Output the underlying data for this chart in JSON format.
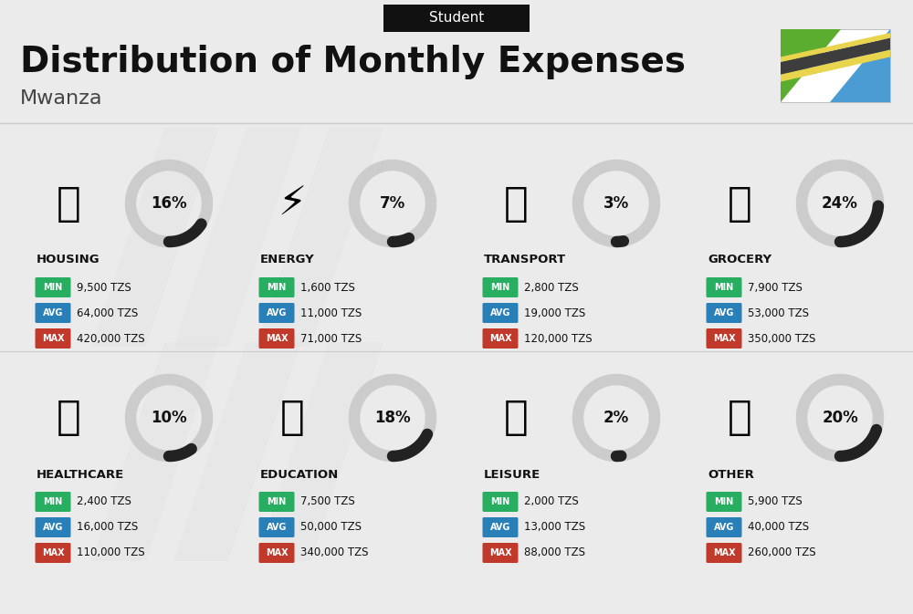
{
  "title": "Distribution of Monthly Expenses",
  "subtitle": "Student",
  "city": "Mwanza",
  "bg_color": "#ebebeb",
  "categories": [
    {
      "name": "HOUSING",
      "pct": 16,
      "min": "9,500 TZS",
      "avg": "64,000 TZS",
      "max": "420,000 TZS",
      "row": 0,
      "col": 0
    },
    {
      "name": "ENERGY",
      "pct": 7,
      "min": "1,600 TZS",
      "avg": "11,000 TZS",
      "max": "71,000 TZS",
      "row": 0,
      "col": 1
    },
    {
      "name": "TRANSPORT",
      "pct": 3,
      "min": "2,800 TZS",
      "avg": "19,000 TZS",
      "max": "120,000 TZS",
      "row": 0,
      "col": 2
    },
    {
      "name": "GROCERY",
      "pct": 24,
      "min": "7,900 TZS",
      "avg": "53,000 TZS",
      "max": "350,000 TZS",
      "row": 0,
      "col": 3
    },
    {
      "name": "HEALTHCARE",
      "pct": 10,
      "min": "2,400 TZS",
      "avg": "16,000 TZS",
      "max": "110,000 TZS",
      "row": 1,
      "col": 0
    },
    {
      "name": "EDUCATION",
      "pct": 18,
      "min": "7,500 TZS",
      "avg": "50,000 TZS",
      "max": "340,000 TZS",
      "row": 1,
      "col": 1
    },
    {
      "name": "LEISURE",
      "pct": 2,
      "min": "2,000 TZS",
      "avg": "13,000 TZS",
      "max": "88,000 TZS",
      "row": 1,
      "col": 2
    },
    {
      "name": "OTHER",
      "pct": 20,
      "min": "5,900 TZS",
      "avg": "40,000 TZS",
      "max": "260,000 TZS",
      "row": 1,
      "col": 3
    }
  ],
  "min_color": "#27ae60",
  "avg_color": "#2980b9",
  "max_color": "#c0392b",
  "arc_dark": "#222222",
  "arc_light": "#cccccc",
  "text_dark": "#111111",
  "text_mid": "#444444",
  "flag_green": "#5aad2e",
  "flag_blue": "#4b9cd3",
  "flag_black": "#3d3d3d",
  "flag_yellow": "#e8d44d"
}
